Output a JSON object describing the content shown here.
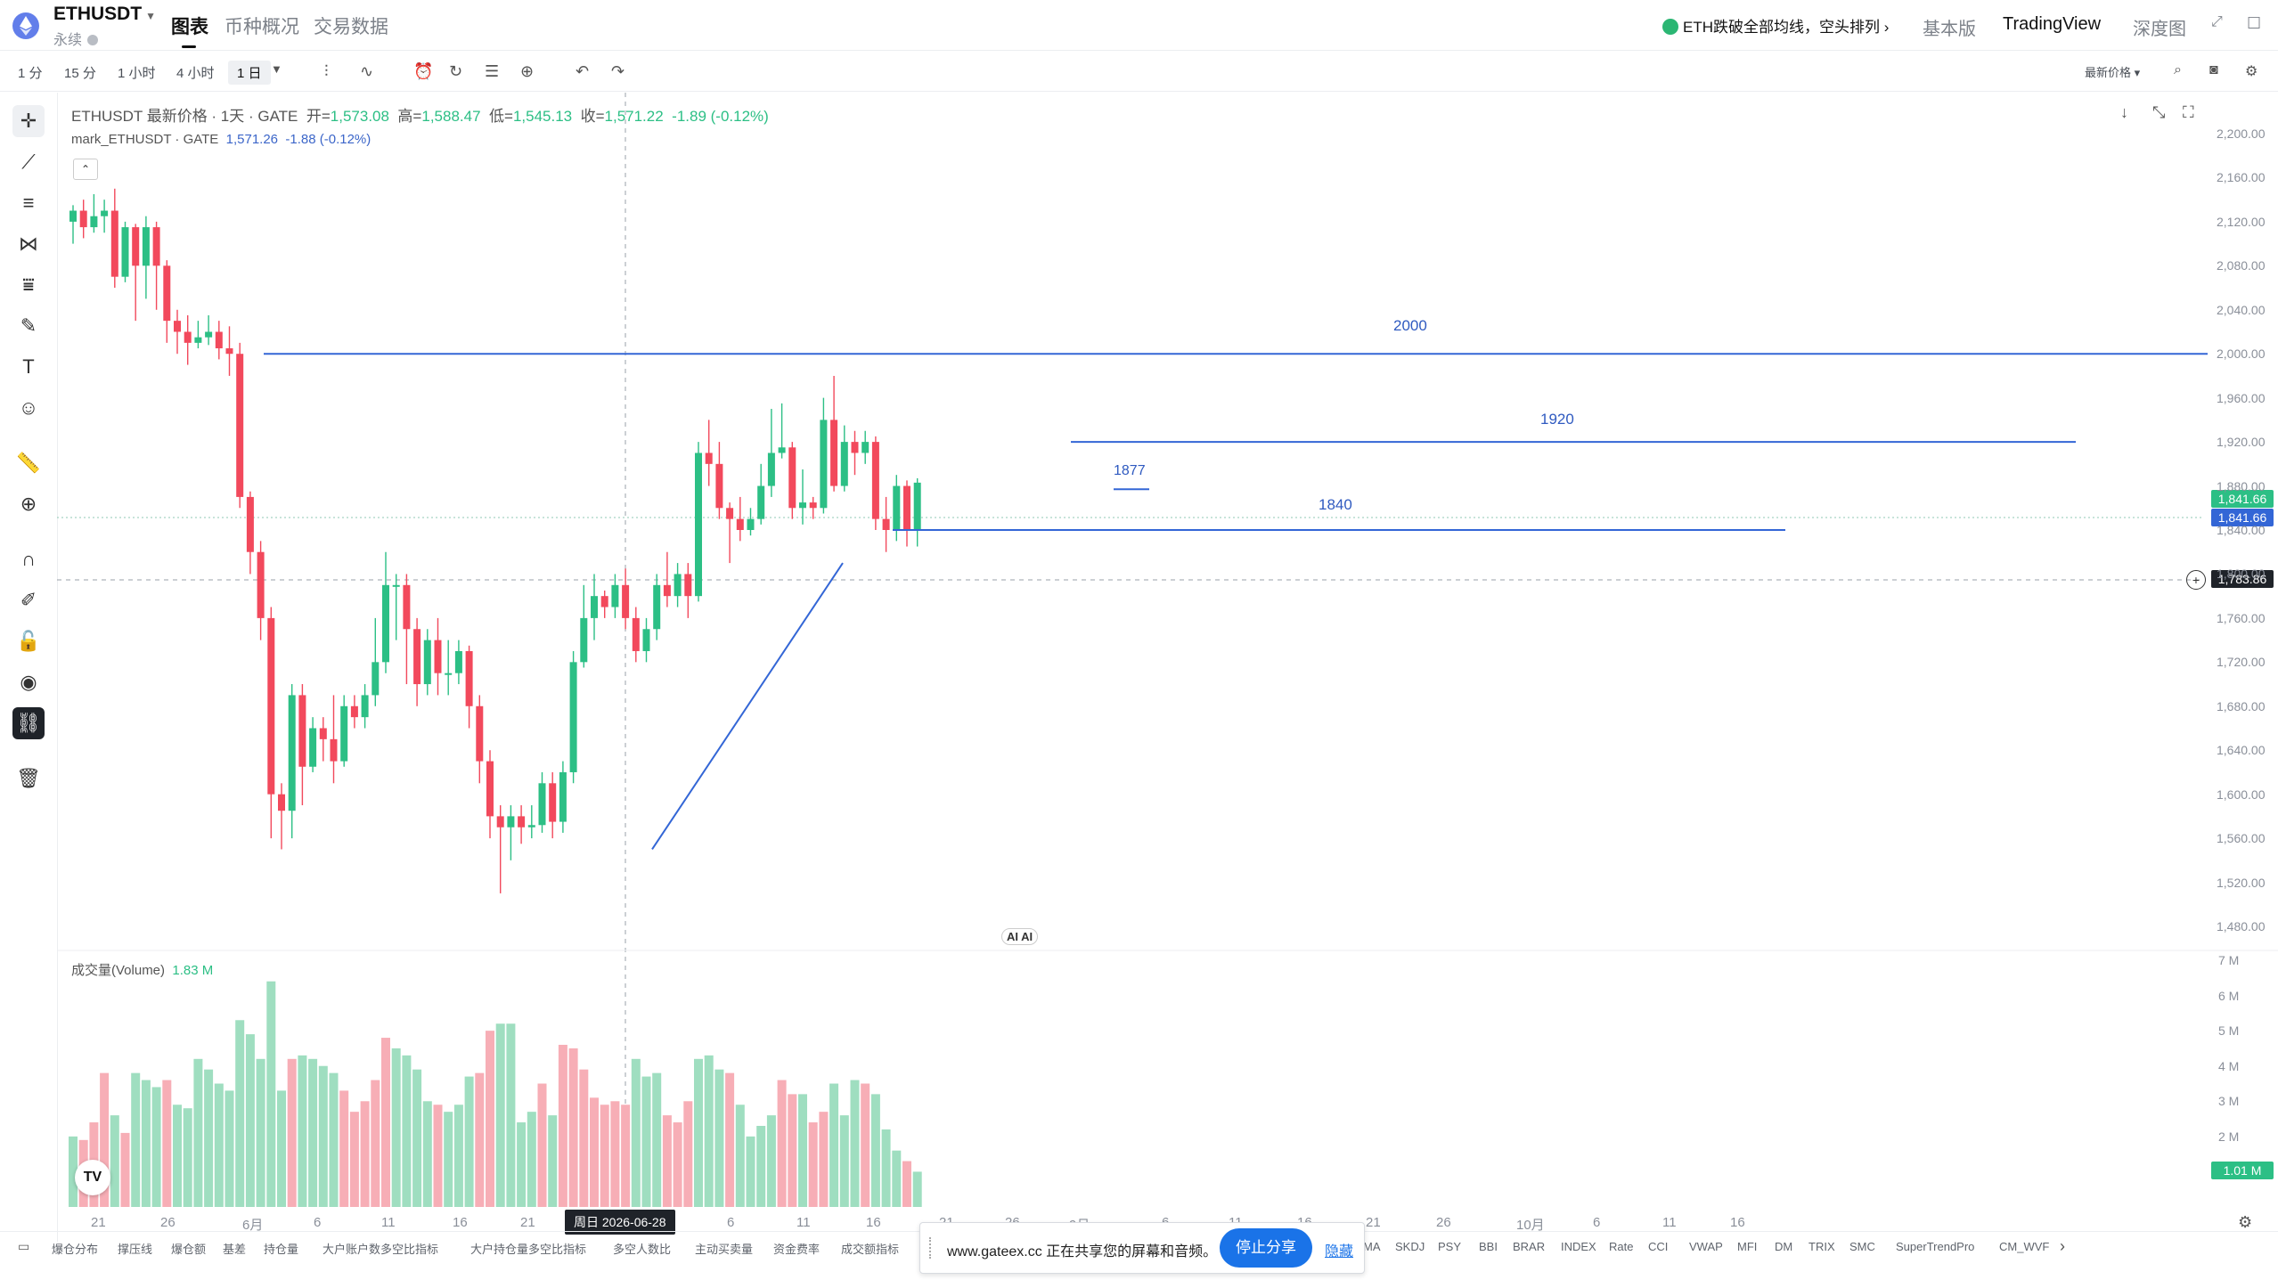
{
  "header": {
    "symbol": "ETHUSDT",
    "subtitle": "永续",
    "tabs": [
      {
        "label": "图表"
      },
      {
        "label": "币种概况"
      },
      {
        "label": "交易数据"
      }
    ],
    "news": "ETH跌破全部均线，空头排列",
    "news_arrow": "›",
    "right": [
      {
        "label": "基本版"
      },
      {
        "label": "TradingView"
      },
      {
        "label": "深度图"
      }
    ]
  },
  "toolbar": {
    "timeframes": [
      "1 分",
      "15 分",
      "1 小时",
      "4 小时",
      "1 日"
    ],
    "selected": "1 日",
    "price_source": "最新价格"
  },
  "legend": {
    "title": "ETHUSDT 最新价格 · 1天 · GATE",
    "open_label": "开=",
    "open": "1,573.08",
    "high_label": "高=",
    "high": "1,588.47",
    "low_label": "低=",
    "low": "1,545.13",
    "close_label": "收=",
    "close": "1,571.22",
    "change": "-1.89 (-0.12%)",
    "mark_label": "mark_ETHUSDT · GATE",
    "mark_value": "1,571.26",
    "mark_change": "-1.88 (-0.12%)"
  },
  "volume_legend": {
    "label": "成交量(Volume)",
    "value": "1.83 M"
  },
  "levels": [
    {
      "label": "2000"
    },
    {
      "label": "1920"
    },
    {
      "label": "1840"
    },
    {
      "label": "1877"
    }
  ],
  "price_tags": [
    {
      "value": "1,841.66",
      "color": "#2cbf85"
    },
    {
      "value": "1,841.66",
      "color": "#3366d6"
    },
    {
      "value": "1,783.86",
      "color": "#1f2329"
    }
  ],
  "volume_tag": "1.01 M",
  "crosshair_date": "周日 2026-06-28",
  "ai_chip": "AI AI",
  "tv_logo": "TV",
  "colors": {
    "up": "#2cbf85",
    "down": "#f2495c",
    "vol_up": "#9fdec0",
    "vol_down": "#f7aeb6",
    "line": "#3366d6"
  },
  "chart_data": {
    "type": "candlestick",
    "y_range": [
      1440,
      2220
    ],
    "y_ticks": [
      "2,200.00",
      "2,160.00",
      "2,120.00",
      "2,080.00",
      "2,040.00",
      "2,000.00",
      "1,960.00",
      "1,920.00",
      "1,880.00",
      "1,840.00",
      "1,800.00",
      "1,760.00",
      "1,720.00",
      "1,680.00",
      "1,640.00",
      "1,600.00",
      "1,560.00",
      "1,520.00",
      "1,480.00"
    ],
    "vol_ticks": [
      "7 M",
      "6 M",
      "5 M",
      "4 M",
      "3 M",
      "2 M"
    ],
    "x_ticks": [
      "21",
      "26",
      "6月",
      "6",
      "11",
      "16",
      "21",
      "6",
      "11",
      "16",
      "21",
      "26",
      "9月",
      "6",
      "11",
      "16",
      "21",
      "26",
      "10月",
      "6",
      "11",
      "16"
    ],
    "horizontal_levels": [
      2000,
      1920,
      1840
    ],
    "candles": [
      [
        2120,
        2130,
        2100,
        2135
      ],
      [
        2130,
        2115,
        2105,
        2140
      ],
      [
        2115,
        2125,
        2110,
        2145
      ],
      [
        2125,
        2130,
        2110,
        2140
      ],
      [
        2130,
        2070,
        2060,
        2150
      ],
      [
        2070,
        2115,
        2065,
        2120
      ],
      [
        2115,
        2080,
        2030,
        2118
      ],
      [
        2080,
        2115,
        2050,
        2125
      ],
      [
        2115,
        2080,
        2040,
        2120
      ],
      [
        2080,
        2030,
        2010,
        2085
      ],
      [
        2030,
        2020,
        2000,
        2040
      ],
      [
        2020,
        2010,
        1990,
        2035
      ],
      [
        2010,
        2015,
        2005,
        2030
      ],
      [
        2015,
        2020,
        2008,
        2035
      ],
      [
        2020,
        2005,
        1995,
        2030
      ],
      [
        2005,
        2000,
        1980,
        2025
      ],
      [
        2000,
        1870,
        1860,
        2010
      ],
      [
        1870,
        1820,
        1800,
        1875
      ],
      [
        1820,
        1760,
        1740,
        1830
      ],
      [
        1760,
        1600,
        1560,
        1770
      ],
      [
        1600,
        1585,
        1550,
        1610
      ],
      [
        1585,
        1690,
        1560,
        1700
      ],
      [
        1690,
        1625,
        1590,
        1700
      ],
      [
        1625,
        1660,
        1620,
        1670
      ],
      [
        1660,
        1650,
        1630,
        1670
      ],
      [
        1650,
        1630,
        1610,
        1690
      ],
      [
        1630,
        1680,
        1625,
        1690
      ],
      [
        1680,
        1670,
        1660,
        1690
      ],
      [
        1670,
        1690,
        1660,
        1700
      ],
      [
        1690,
        1720,
        1680,
        1760
      ],
      [
        1720,
        1790,
        1710,
        1820
      ],
      [
        1790,
        1790,
        1740,
        1800
      ],
      [
        1790,
        1750,
        1700,
        1800
      ],
      [
        1750,
        1700,
        1680,
        1760
      ],
      [
        1700,
        1740,
        1690,
        1750
      ],
      [
        1740,
        1710,
        1690,
        1760
      ],
      [
        1710,
        1710,
        1690,
        1740
      ],
      [
        1710,
        1730,
        1700,
        1740
      ],
      [
        1730,
        1680,
        1660,
        1735
      ],
      [
        1680,
        1630,
        1610,
        1690
      ],
      [
        1630,
        1580,
        1560,
        1640
      ],
      [
        1580,
        1570,
        1510,
        1590
      ],
      [
        1570,
        1580,
        1540,
        1590
      ],
      [
        1580,
        1570,
        1555,
        1590
      ],
      [
        1570,
        1572,
        1560,
        1590
      ],
      [
        1572,
        1610,
        1565,
        1620
      ],
      [
        1610,
        1575,
        1560,
        1620
      ],
      [
        1575,
        1620,
        1565,
        1630
      ],
      [
        1620,
        1720,
        1610,
        1730
      ],
      [
        1720,
        1760,
        1715,
        1790
      ],
      [
        1760,
        1780,
        1740,
        1800
      ],
      [
        1780,
        1770,
        1760,
        1785
      ],
      [
        1770,
        1790,
        1760,
        1800
      ],
      [
        1790,
        1760,
        1750,
        1805
      ],
      [
        1760,
        1730,
        1720,
        1770
      ],
      [
        1730,
        1750,
        1720,
        1760
      ],
      [
        1750,
        1790,
        1740,
        1800
      ],
      [
        1790,
        1780,
        1770,
        1820
      ],
      [
        1780,
        1800,
        1770,
        1810
      ],
      [
        1800,
        1780,
        1760,
        1810
      ],
      [
        1780,
        1910,
        1775,
        1920
      ],
      [
        1910,
        1900,
        1880,
        1940
      ],
      [
        1900,
        1860,
        1850,
        1920
      ],
      [
        1860,
        1850,
        1810,
        1865
      ],
      [
        1850,
        1840,
        1830,
        1870
      ],
      [
        1840,
        1850,
        1835,
        1860
      ],
      [
        1850,
        1880,
        1845,
        1900
      ],
      [
        1880,
        1910,
        1870,
        1950
      ],
      [
        1910,
        1915,
        1905,
        1955
      ],
      [
        1915,
        1860,
        1850,
        1920
      ],
      [
        1860,
        1865,
        1845,
        1895
      ],
      [
        1865,
        1860,
        1850,
        1870
      ],
      [
        1860,
        1940,
        1855,
        1960
      ],
      [
        1940,
        1880,
        1875,
        1980
      ],
      [
        1880,
        1920,
        1875,
        1935
      ],
      [
        1920,
        1910,
        1890,
        1930
      ],
      [
        1910,
        1920,
        1900,
        1930
      ],
      [
        1920,
        1850,
        1840,
        1925
      ],
      [
        1850,
        1840,
        1820,
        1870
      ],
      [
        1840,
        1880,
        1830,
        1890
      ],
      [
        1880,
        1840,
        1825,
        1885
      ],
      [
        1840,
        1883,
        1825,
        1887
      ]
    ],
    "volumes": [
      [
        2.0,
        "u"
      ],
      [
        1.9,
        "d"
      ],
      [
        2.4,
        "d"
      ],
      [
        3.8,
        "d"
      ],
      [
        2.6,
        "u"
      ],
      [
        2.1,
        "d"
      ],
      [
        3.8,
        "u"
      ],
      [
        3.6,
        "u"
      ],
      [
        3.4,
        "u"
      ],
      [
        3.6,
        "d"
      ],
      [
        2.9,
        "u"
      ],
      [
        2.8,
        "u"
      ],
      [
        4.2,
        "u"
      ],
      [
        3.9,
        "u"
      ],
      [
        3.5,
        "u"
      ],
      [
        3.3,
        "u"
      ],
      [
        5.3,
        "u"
      ],
      [
        4.9,
        "u"
      ],
      [
        4.2,
        "u"
      ],
      [
        6.4,
        "u"
      ],
      [
        3.3,
        "u"
      ],
      [
        4.2,
        "d"
      ],
      [
        4.3,
        "u"
      ],
      [
        4.2,
        "u"
      ],
      [
        4.0,
        "u"
      ],
      [
        3.8,
        "u"
      ],
      [
        3.3,
        "d"
      ],
      [
        2.7,
        "d"
      ],
      [
        3.0,
        "d"
      ],
      [
        3.6,
        "d"
      ],
      [
        4.8,
        "d"
      ],
      [
        4.5,
        "u"
      ],
      [
        4.3,
        "u"
      ],
      [
        3.9,
        "u"
      ],
      [
        3.0,
        "u"
      ],
      [
        2.9,
        "d"
      ],
      [
        2.7,
        "u"
      ],
      [
        2.9,
        "u"
      ],
      [
        3.7,
        "u"
      ],
      [
        3.8,
        "d"
      ],
      [
        5.0,
        "d"
      ],
      [
        5.2,
        "u"
      ],
      [
        5.2,
        "u"
      ],
      [
        2.4,
        "u"
      ],
      [
        2.7,
        "u"
      ],
      [
        3.5,
        "d"
      ],
      [
        2.6,
        "u"
      ],
      [
        4.6,
        "d"
      ],
      [
        4.5,
        "d"
      ],
      [
        3.9,
        "d"
      ],
      [
        3.1,
        "d"
      ],
      [
        2.9,
        "d"
      ],
      [
        3.0,
        "d"
      ],
      [
        2.9,
        "d"
      ],
      [
        4.2,
        "u"
      ],
      [
        3.7,
        "u"
      ],
      [
        3.8,
        "u"
      ],
      [
        2.6,
        "d"
      ],
      [
        2.4,
        "d"
      ],
      [
        3.0,
        "d"
      ],
      [
        4.2,
        "u"
      ],
      [
        4.3,
        "u"
      ],
      [
        3.9,
        "u"
      ],
      [
        3.8,
        "d"
      ],
      [
        2.9,
        "u"
      ],
      [
        2.0,
        "u"
      ],
      [
        2.3,
        "u"
      ],
      [
        2.6,
        "u"
      ],
      [
        3.6,
        "d"
      ],
      [
        3.2,
        "d"
      ],
      [
        3.2,
        "u"
      ],
      [
        2.4,
        "d"
      ],
      [
        2.7,
        "d"
      ],
      [
        3.5,
        "u"
      ],
      [
        2.6,
        "u"
      ],
      [
        3.6,
        "u"
      ],
      [
        3.5,
        "d"
      ],
      [
        3.2,
        "u"
      ],
      [
        2.2,
        "u"
      ],
      [
        1.6,
        "u"
      ],
      [
        1.3,
        "d"
      ],
      [
        1.0,
        "u"
      ]
    ]
  },
  "indicators": [
    "爆仓分布",
    "撑压线",
    "爆仓额",
    "基差",
    "持仓量",
    "大户账户数多空比指标",
    "大户持仓量多空比指标",
    "多空人数比",
    "主动买卖量",
    "资金费率",
    "成交额指标",
    "MA",
    "SKDJ",
    "PSY",
    "BBI",
    "BRAR",
    "INDEX",
    "Rate",
    "CCI",
    "VWAP",
    "MFI",
    "DM",
    "TRIX",
    "SMC",
    "SuperTrendPro",
    "CM_WVF"
  ],
  "share": {
    "text": "www.gateex.cc 正在共享您的屏幕和音频。",
    "stop": "停止分享",
    "hide": "隐藏"
  }
}
